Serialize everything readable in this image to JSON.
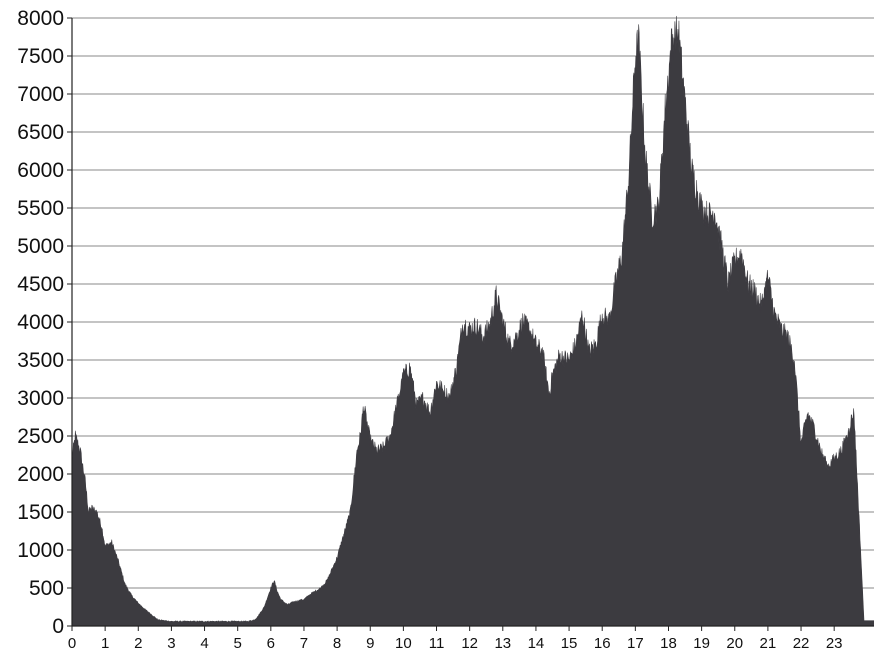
{
  "chart_data": {
    "type": "area",
    "title": "",
    "xlabel": "",
    "ylabel": "",
    "xlim": [
      0,
      23.9
    ],
    "ylim": [
      0,
      8000
    ],
    "grid": "horizontal",
    "legend": "none",
    "x_ticks": [
      "0",
      "1",
      "2",
      "3",
      "4",
      "5",
      "6",
      "7",
      "8",
      "9",
      "10",
      "11",
      "12",
      "13",
      "14",
      "15",
      "16",
      "17",
      "18",
      "19",
      "20",
      "21",
      "22",
      "23"
    ],
    "y_ticks": [
      "0",
      "500",
      "1000",
      "1500",
      "2000",
      "2500",
      "3000",
      "3500",
      "4000",
      "4500",
      "5000",
      "5500",
      "6000",
      "6500",
      "7000",
      "7500",
      "8000"
    ],
    "colors": {
      "area": "#3c3b40",
      "grid": "#8a8a8a",
      "axis": "#222222",
      "text": "#111111"
    },
    "series": [
      {
        "x": [
          0,
          0.1,
          0.25,
          0.4,
          0.5,
          0.6,
          0.75,
          0.9,
          1.0,
          1.2,
          1.4,
          1.6,
          1.8,
          2.0,
          2.2,
          2.4,
          2.6,
          2.8,
          3.0,
          3.5,
          4.0,
          4.5,
          5.0,
          5.3,
          5.5,
          5.6,
          5.8,
          6.0,
          6.1,
          6.2,
          6.3,
          6.5,
          6.7,
          7.0,
          7.2,
          7.5,
          7.7,
          8.0,
          8.2,
          8.4,
          8.6,
          8.7,
          8.8,
          9.0,
          9.2,
          9.4,
          9.6,
          9.8,
          10.0,
          10.2,
          10.4,
          10.6,
          10.8,
          11.0,
          11.2,
          11.4,
          11.6,
          11.8,
          12.0,
          12.2,
          12.4,
          12.6,
          12.8,
          13.0,
          13.2,
          13.4,
          13.6,
          13.8,
          14.0,
          14.2,
          14.4,
          14.5,
          14.7,
          15.0,
          15.2,
          15.4,
          15.6,
          15.8,
          16.0,
          16.2,
          16.4,
          16.6,
          16.8,
          17.0,
          17.1,
          17.3,
          17.5,
          17.7,
          17.9,
          18.1,
          18.3,
          18.5,
          18.7,
          19.0,
          19.2,
          19.4,
          19.6,
          19.8,
          20.0,
          20.2,
          20.4,
          20.6,
          20.8,
          21.0,
          21.2,
          21.4,
          21.6,
          21.8,
          22.0,
          22.2,
          22.4,
          22.6,
          22.8,
          23.0,
          23.2,
          23.4,
          23.5,
          23.6,
          23.9
        ],
        "values": [
          2200,
          2500,
          2300,
          1900,
          1500,
          1550,
          1500,
          1300,
          1050,
          1100,
          850,
          550,
          400,
          300,
          220,
          150,
          80,
          70,
          60,
          60,
          60,
          60,
          60,
          60,
          80,
          120,
          250,
          500,
          600,
          450,
          350,
          280,
          320,
          350,
          420,
          500,
          600,
          900,
          1200,
          1500,
          2300,
          2500,
          2900,
          2450,
          2300,
          2350,
          2500,
          2900,
          3300,
          3400,
          2900,
          3000,
          2800,
          3200,
          3100,
          3000,
          3400,
          4000,
          3900,
          3950,
          3800,
          3950,
          4350,
          4000,
          3700,
          3800,
          4000,
          3900,
          3700,
          3600,
          3050,
          3300,
          3550,
          3500,
          3700,
          4100,
          3600,
          3700,
          4100,
          4000,
          4500,
          4900,
          5900,
          7500,
          7700,
          6200,
          5400,
          5500,
          6800,
          7700,
          7800,
          6900,
          6000,
          5500,
          5400,
          5450,
          5000,
          4500,
          4800,
          4900,
          4500,
          4400,
          4200,
          4600,
          4100,
          3900,
          3800,
          3500,
          2400,
          2800,
          2600,
          2300,
          2100,
          2200,
          2300,
          2500,
          2700,
          2800,
          70
        ]
      }
    ]
  }
}
